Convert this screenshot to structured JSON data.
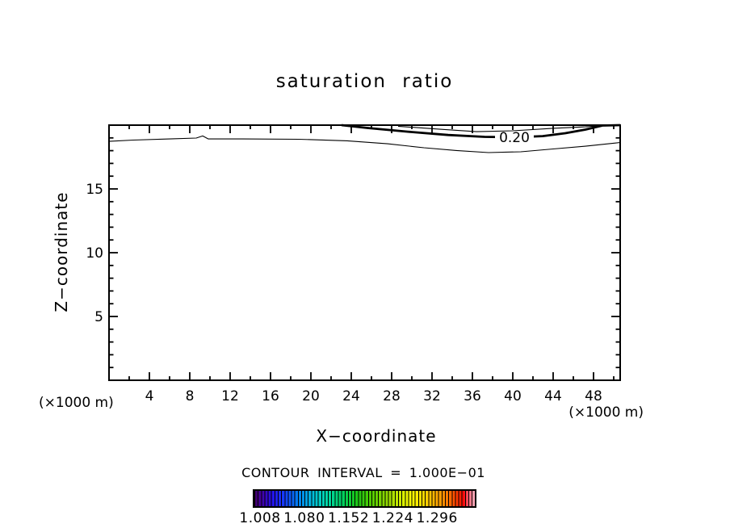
{
  "chart_data": {
    "type": "contour",
    "title": "saturation ratio",
    "xlabel": "X−coordinate",
    "ylabel": "Z−coordinate",
    "x_unit": "(×1000 m)",
    "contour_interval_text": "CONTOUR INTERVAL = 1.000E−01",
    "x_range": [
      0,
      50.64
    ],
    "y_range": [
      0,
      20
    ],
    "x_major_ticks": [
      4,
      8,
      12,
      16,
      20,
      24,
      28,
      32,
      36,
      40,
      44,
      48
    ],
    "x_minor_step": 2,
    "y_major_ticks": [
      5,
      10,
      15
    ],
    "y_minor_step": 1,
    "grid": false,
    "line_color": "#000000",
    "background_color": "#ffffff",
    "contours": [
      {
        "level": 0.1,
        "thick": false,
        "points": [
          [
            0,
            18.73
          ],
          [
            2.4,
            18.83
          ],
          [
            6.0,
            18.92
          ],
          [
            8.64,
            18.99
          ],
          [
            9.28,
            19.15
          ],
          [
            9.84,
            18.92
          ],
          [
            13.2,
            18.92
          ],
          [
            18.8,
            18.89
          ],
          [
            23.6,
            18.77
          ],
          [
            27.6,
            18.54
          ],
          [
            31.2,
            18.23
          ],
          [
            34.4,
            18.01
          ],
          [
            37.6,
            17.85
          ],
          [
            40.8,
            17.91
          ],
          [
            44.0,
            18.13
          ],
          [
            47.2,
            18.35
          ],
          [
            50.64,
            18.64
          ]
        ]
      },
      {
        "level": 0.2,
        "thick": true,
        "label": "0.20",
        "label_pos": [
          40.16,
          19.05
        ],
        "points": [
          [
            23.04,
            20.0
          ],
          [
            25.6,
            19.78
          ],
          [
            29.6,
            19.49
          ],
          [
            33.6,
            19.23
          ],
          [
            37.2,
            19.08
          ],
          [
            40.16,
            19.05
          ],
          [
            42.96,
            19.14
          ],
          [
            45.2,
            19.37
          ],
          [
            47.2,
            19.65
          ],
          [
            48.88,
            19.97
          ],
          [
            50.64,
            20.0
          ]
        ]
      },
      {
        "level": 0.3,
        "thick": false,
        "points": [
          [
            28.64,
            19.91
          ],
          [
            32.8,
            19.68
          ],
          [
            36.4,
            19.49
          ],
          [
            40.0,
            19.56
          ],
          [
            44.0,
            19.75
          ],
          [
            47.2,
            19.87
          ],
          [
            48.96,
            19.97
          ]
        ]
      }
    ],
    "colorbar": {
      "tick_labels": [
        "1.008",
        "1.080",
        "1.152",
        "1.224",
        "1.296"
      ],
      "gradient_stops": [
        [
          "#3c0058",
          0
        ],
        [
          "#4400a0",
          3
        ],
        [
          "#2410e8",
          8
        ],
        [
          "#1440ff",
          14
        ],
        [
          "#0080f0",
          20
        ],
        [
          "#00c0d8",
          27
        ],
        [
          "#00d8a8",
          33
        ],
        [
          "#00d060",
          40
        ],
        [
          "#18c818",
          46
        ],
        [
          "#50cc00",
          53
        ],
        [
          "#90d800",
          60
        ],
        [
          "#ccec00",
          66
        ],
        [
          "#fcfc00",
          71
        ],
        [
          "#ffd000",
          78
        ],
        [
          "#ffa000",
          84
        ],
        [
          "#ff6800",
          89
        ],
        [
          "#ff2800",
          93
        ],
        [
          "#fc0808",
          95
        ],
        [
          "#ff5c70",
          97
        ],
        [
          "#ff94a4",
          99
        ],
        [
          "#ffb0c0",
          100
        ]
      ]
    }
  }
}
